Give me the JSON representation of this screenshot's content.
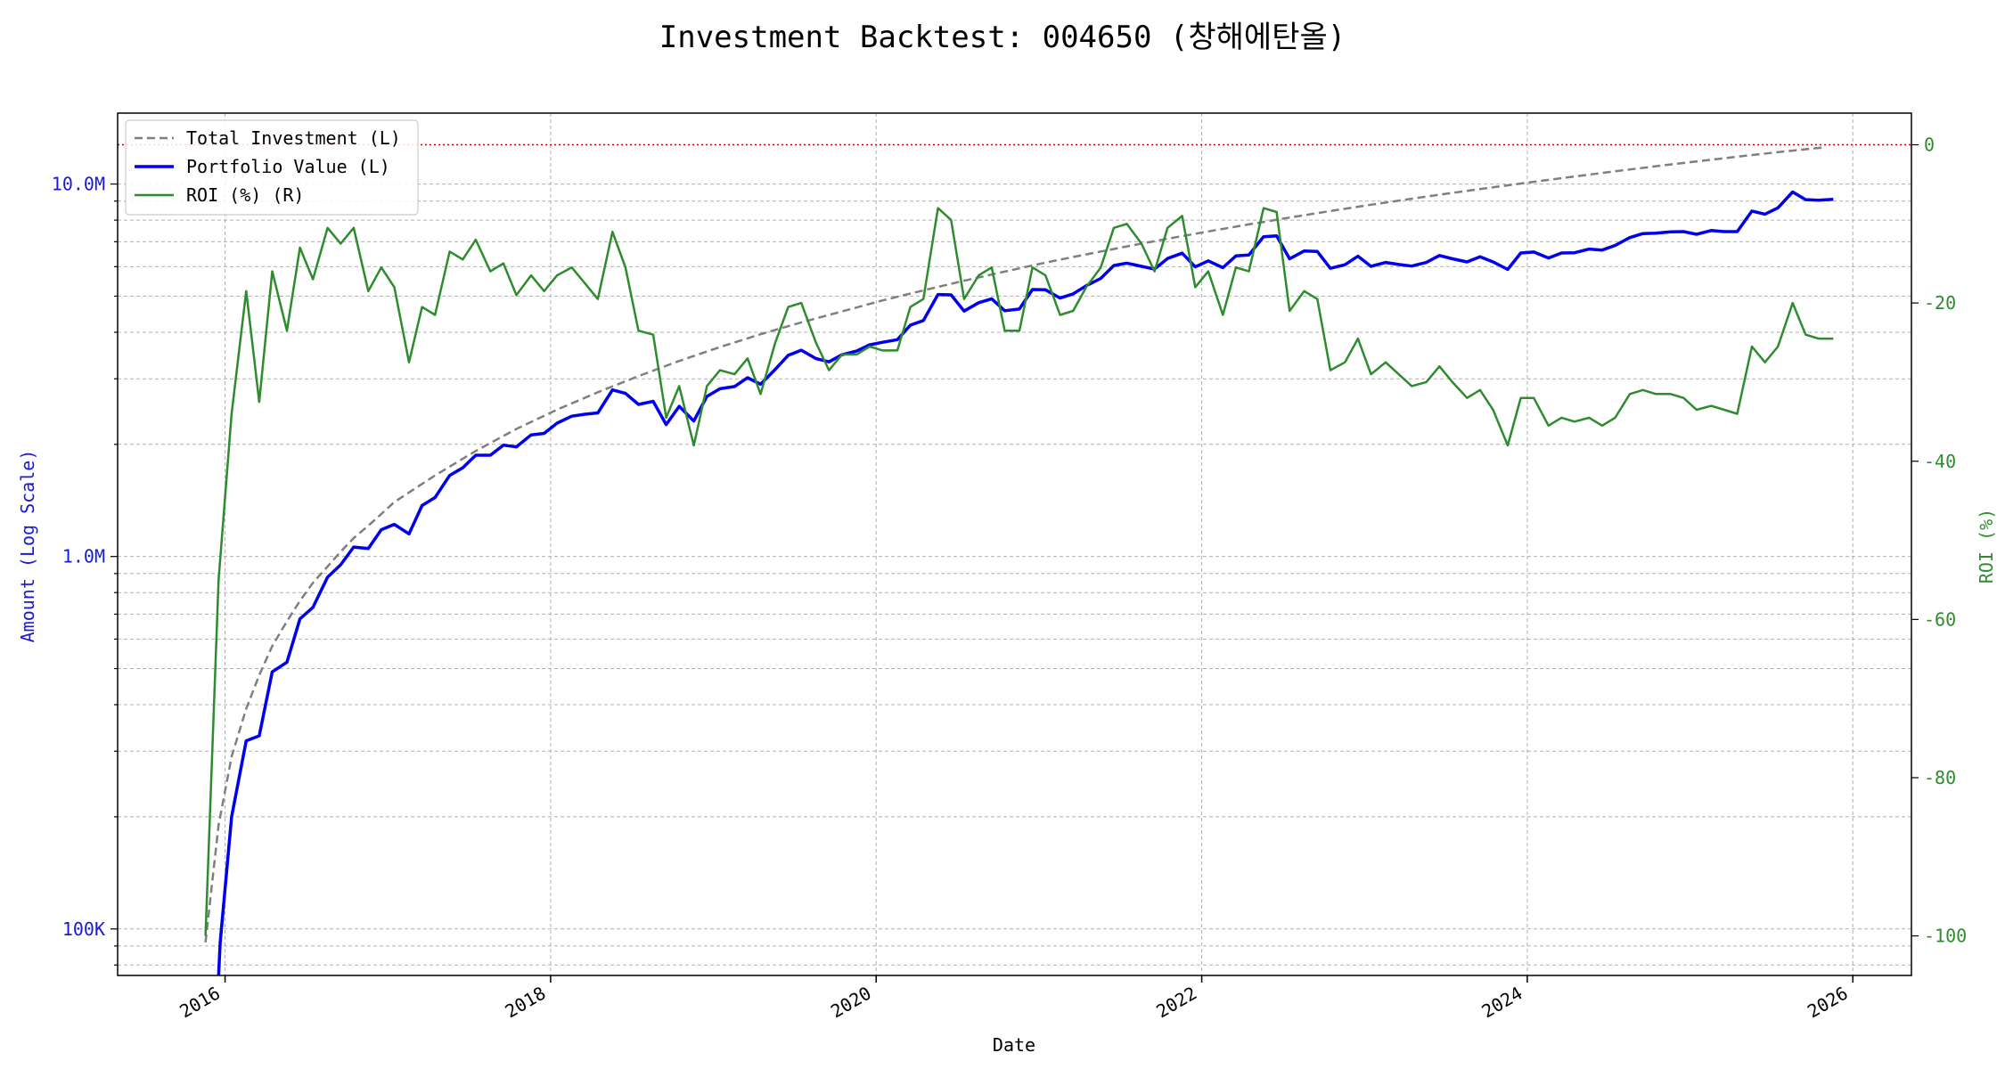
{
  "chart_data": {
    "type": "line",
    "title": "Investment Backtest: 004650 (창해에탄올)",
    "xlabel": "Date",
    "ylabel_left": "Amount (Log Scale)",
    "ylabel_right": "ROI (%)",
    "y_left_scale": "log",
    "y_left_ticks": [
      {
        "value": 100000,
        "label": "100K"
      },
      {
        "value": 1000000,
        "label": "1.0M"
      },
      {
        "value": 10000000,
        "label": "10.0M"
      }
    ],
    "y_left_range": [
      75000,
      15500000
    ],
    "y_right_ticks": [
      0,
      -20,
      -40,
      -60,
      -80,
      -100
    ],
    "y_right_range": [
      -105,
      4
    ],
    "x_ticks": [
      "2016",
      "2018",
      "2020",
      "2022",
      "2024",
      "2026"
    ],
    "x_range": [
      2015.34,
      2026.36
    ],
    "grid": true,
    "legend_position": "upper-left",
    "reference_line": {
      "axis": "right",
      "value": 0,
      "color": "#cc0000",
      "style": "dotted"
    },
    "colors": {
      "total_investment": "#7f7f7f",
      "portfolio_value": "#0000ee",
      "roi": "#2e8b2e",
      "left_axis": "#1a1ad6",
      "right_axis": "#2e8b2e"
    },
    "series": [
      {
        "name": "Total Investment (L)",
        "axis": "left",
        "style": "dashed",
        "key": "total_investment",
        "x": [
          2015.88,
          2015.96,
          2016.04,
          2016.13,
          2016.21,
          2016.29,
          2016.38,
          2016.46,
          2016.54,
          2016.63,
          2016.71,
          2016.79,
          2016.88,
          2016.96,
          2017.04,
          2017.29,
          2017.54,
          2017.79,
          2018.04,
          2018.29,
          2018.54,
          2018.79,
          2019.04,
          2019.29,
          2019.54,
          2019.79,
          2020.04,
          2020.29,
          2020.54,
          2020.79,
          2021.04,
          2021.29,
          2021.54,
          2021.79,
          2022.04,
          2022.29,
          2022.54,
          2022.79,
          2023.04,
          2023.29,
          2023.54,
          2023.79,
          2024.04,
          2024.29,
          2024.54,
          2024.79,
          2025.04,
          2025.29,
          2025.54,
          2025.83
        ],
        "y": [
          92000,
          190000,
          290000,
          390000,
          480000,
          575000,
          670000,
          760000,
          850000,
          940000,
          1030000,
          1120000,
          1210000,
          1300000,
          1400000,
          1650000,
          1920000,
          2200000,
          2480000,
          2760000,
          3050000,
          3350000,
          3650000,
          3950000,
          4250000,
          4550000,
          4870000,
          5180000,
          5500000,
          5820000,
          6150000,
          6470000,
          6800000,
          7130000,
          7460000,
          7790000,
          8130000,
          8460000,
          8800000,
          9130000,
          9470000,
          9800000,
          10140000,
          10480000,
          10820000,
          11160000,
          11500000,
          11840000,
          12180000,
          12550000
        ]
      },
      {
        "name": "Portfolio Value (L)",
        "axis": "left",
        "style": "solid",
        "key": "portfolio_value",
        "x": [
          2015.96,
          2015.97,
          2016.04,
          2016.13,
          2016.21,
          2016.29,
          2016.38,
          2016.46,
          2016.54,
          2016.63,
          2016.71,
          2016.79,
          2016.88,
          2016.96,
          2017.04,
          2017.13,
          2017.21,
          2017.29,
          2017.38,
          2017.46,
          2017.54,
          2017.63,
          2017.71,
          2017.79,
          2017.88,
          2017.96,
          2018.04,
          2018.13,
          2018.21,
          2018.29,
          2018.38,
          2018.46,
          2018.54,
          2018.63,
          2018.71,
          2018.79,
          2018.88,
          2018.96,
          2019.04,
          2019.13,
          2019.21,
          2019.29,
          2019.38,
          2019.46,
          2019.54,
          2019.63,
          2019.71,
          2019.79,
          2019.88,
          2019.96,
          2020.04,
          2020.13,
          2020.21,
          2020.29,
          2020.38,
          2020.46,
          2020.54,
          2020.63,
          2020.71,
          2020.79,
          2020.88,
          2020.96,
          2021.04,
          2021.13,
          2021.21,
          2021.29,
          2021.38,
          2021.46,
          2021.54,
          2021.63,
          2021.71,
          2021.79,
          2021.88,
          2021.96,
          2022.04,
          2022.13,
          2022.21,
          2022.29,
          2022.38,
          2022.46,
          2022.54,
          2022.63,
          2022.71,
          2022.79,
          2022.88,
          2022.96,
          2023.04,
          2023.13,
          2023.21,
          2023.29,
          2023.38,
          2023.46,
          2023.54,
          2023.63,
          2023.71,
          2023.79,
          2023.88,
          2023.96,
          2024.04,
          2024.13,
          2024.21,
          2024.29,
          2024.38,
          2024.46,
          2024.54,
          2024.63,
          2024.71,
          2024.79,
          2024.88,
          2024.96,
          2025.04,
          2025.13,
          2025.21,
          2025.29,
          2025.38,
          2025.46,
          2025.54,
          2025.63,
          2025.71,
          2025.79,
          2025.88
        ],
        "y": [
          75000,
          92000,
          200000,
          320000,
          330000,
          490000,
          520000,
          680000,
          730000,
          880000,
          950000,
          1060000,
          1050000,
          1180000,
          1220000,
          1150000,
          1370000,
          1440000,
          1650000,
          1730000,
          1870000,
          1870000,
          1990000,
          1970000,
          2120000,
          2140000,
          2280000,
          2380000,
          2410000,
          2430000,
          2800000,
          2740000,
          2560000,
          2610000,
          2260000,
          2530000,
          2310000,
          2690000,
          2820000,
          2860000,
          3020000,
          2900000,
          3180000,
          3470000,
          3580000,
          3400000,
          3330000,
          3480000,
          3560000,
          3700000,
          3760000,
          3820000,
          4180000,
          4300000,
          5050000,
          5040000,
          4560000,
          4800000,
          4920000,
          4570000,
          4620000,
          5210000,
          5200000,
          4940000,
          5070000,
          5330000,
          5580000,
          6040000,
          6130000,
          6010000,
          5910000,
          6310000,
          6520000,
          5990000,
          6220000,
          5960000,
          6410000,
          6450000,
          7220000,
          7260000,
          6300000,
          6610000,
          6590000,
          5940000,
          6070000,
          6400000,
          6010000,
          6160000,
          6080000,
          6020000,
          6160000,
          6430000,
          6300000,
          6180000,
          6380000,
          6180000,
          5900000,
          6530000,
          6570000,
          6330000,
          6530000,
          6540000,
          6690000,
          6650000,
          6840000,
          7180000,
          7360000,
          7380000,
          7440000,
          7450000,
          7330000,
          7500000,
          7450000,
          7450000,
          8460000,
          8300000,
          8630000,
          9520000,
          9080000,
          9050000,
          9100000
        ]
      },
      {
        "name": "ROI (%) (R)",
        "axis": "right",
        "style": "solid",
        "key": "roi",
        "x": [
          2015.88,
          2015.96,
          2016.04,
          2016.13,
          2016.21,
          2016.29,
          2016.38,
          2016.46,
          2016.54,
          2016.63,
          2016.71,
          2016.79,
          2016.88,
          2016.96,
          2017.04,
          2017.13,
          2017.21,
          2017.29,
          2017.38,
          2017.46,
          2017.54,
          2017.63,
          2017.71,
          2017.79,
          2017.88,
          2017.96,
          2018.04,
          2018.13,
          2018.21,
          2018.29,
          2018.38,
          2018.46,
          2018.54,
          2018.63,
          2018.71,
          2018.79,
          2018.88,
          2018.96,
          2019.04,
          2019.13,
          2019.21,
          2019.29,
          2019.38,
          2019.46,
          2019.54,
          2019.63,
          2019.71,
          2019.79,
          2019.88,
          2019.96,
          2020.04,
          2020.13,
          2020.21,
          2020.29,
          2020.38,
          2020.46,
          2020.54,
          2020.63,
          2020.71,
          2020.79,
          2020.88,
          2020.96,
          2021.04,
          2021.13,
          2021.21,
          2021.29,
          2021.38,
          2021.46,
          2021.54,
          2021.63,
          2021.71,
          2021.79,
          2021.88,
          2021.96,
          2022.04,
          2022.13,
          2022.21,
          2022.29,
          2022.38,
          2022.46,
          2022.54,
          2022.63,
          2022.71,
          2022.79,
          2022.88,
          2022.96,
          2023.04,
          2023.13,
          2023.21,
          2023.29,
          2023.38,
          2023.46,
          2023.54,
          2023.63,
          2023.71,
          2023.79,
          2023.88,
          2023.96,
          2024.04,
          2024.13,
          2024.21,
          2024.29,
          2024.38,
          2024.46,
          2024.54,
          2024.63,
          2024.71,
          2024.79,
          2024.88,
          2024.96,
          2025.04,
          2025.13,
          2025.21,
          2025.29,
          2025.38,
          2025.46,
          2025.54,
          2025.63,
          2025.71,
          2025.79,
          2025.88
        ],
        "y": [
          -100,
          -55,
          -34,
          -18.5,
          -32.5,
          -16,
          -23.5,
          -13,
          -17,
          -10.5,
          -12.5,
          -10.5,
          -18.5,
          -15.5,
          -18,
          -27.5,
          -20.5,
          -21.5,
          -13.5,
          -14.5,
          -12,
          -16,
          -15,
          -19,
          -16.5,
          -18.5,
          -16.5,
          -15.5,
          -17.5,
          -19.5,
          -11,
          -15.5,
          -23.5,
          -24,
          -34.5,
          -30.5,
          -38,
          -30.5,
          -28.5,
          -29,
          -27,
          -31.5,
          -25,
          -20.5,
          -20,
          -25,
          -28.5,
          -26.5,
          -26.5,
          -25.5,
          -26,
          -26,
          -20.5,
          -19.5,
          -8,
          -9.5,
          -19.5,
          -16.5,
          -15.5,
          -23.5,
          -23.5,
          -15.5,
          -16.5,
          -21.5,
          -21,
          -18,
          -15.5,
          -10.5,
          -10,
          -12.5,
          -16,
          -10.5,
          -9,
          -18,
          -16,
          -21.5,
          -15.5,
          -16,
          -8,
          -8.5,
          -21,
          -18.5,
          -19.5,
          -28.5,
          -27.5,
          -24.5,
          -29,
          -27.5,
          -29,
          -30.5,
          -30,
          -28,
          -30,
          -32,
          -31,
          -33.5,
          -38,
          -32,
          -32,
          -35.5,
          -34.5,
          -35,
          -34.5,
          -35.5,
          -34.5,
          -31.5,
          -31,
          -31.5,
          -31.5,
          -32,
          -33.5,
          -33,
          -33.5,
          -34,
          -25.5,
          -27.5,
          -25.5,
          -20,
          -24,
          -24.5,
          -24.5
        ]
      }
    ]
  }
}
